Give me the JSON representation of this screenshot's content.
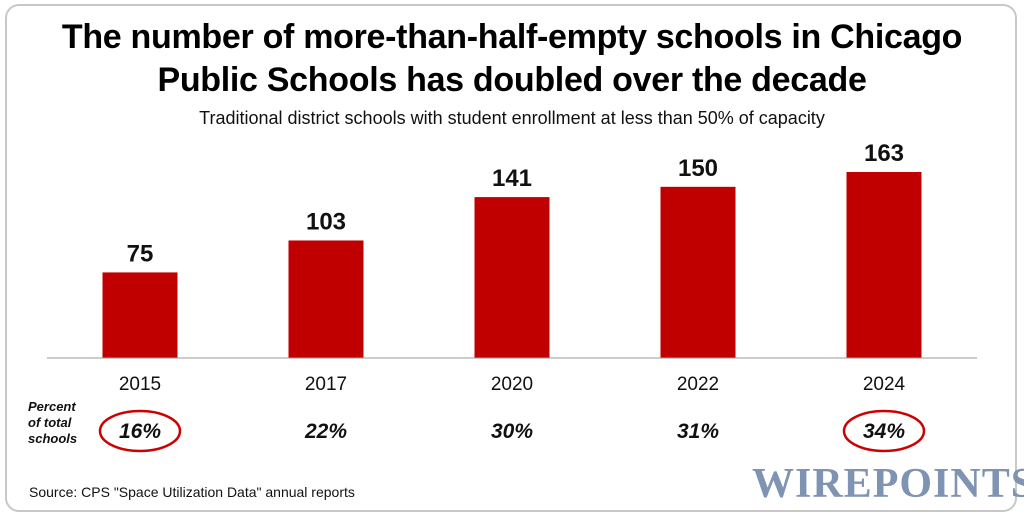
{
  "header": {
    "title_line1": "The number of more-than-half-empty schools in Chicago",
    "title_line2": "Public Schools has doubled over the decade",
    "subtitle": "Traditional district schools with student enrollment at less than 50% of capacity"
  },
  "percent_row": {
    "label": "Percent of total schools",
    "label_lines": [
      "Percent",
      "of total",
      "schools"
    ],
    "values": [
      "16%",
      "22%",
      "30%",
      "31%",
      "34%"
    ],
    "circled": [
      true,
      false,
      false,
      false,
      true
    ],
    "circle_color": "#cc0000"
  },
  "footer": {
    "source": "Source: CPS \"Space Utilization Data\" annual reports",
    "brand": "WIREPOINTS"
  },
  "colors": {
    "bar": "#c00000",
    "brand": "#7f93b3",
    "axis": "#999999"
  },
  "chart_data": {
    "type": "bar",
    "title": "The number of more-than-half-empty schools in Chicago Public Schools has doubled over the decade",
    "subtitle": "Traditional district schools with student enrollment at less than 50% of capacity",
    "categories": [
      "2015",
      "2017",
      "2020",
      "2022",
      "2024"
    ],
    "values": [
      75,
      103,
      141,
      150,
      163
    ],
    "data_labels": [
      "75",
      "103",
      "141",
      "150",
      "163"
    ],
    "xlabel": "",
    "ylabel": "",
    "ylim": [
      0,
      163
    ],
    "grid": false,
    "legend": "none"
  }
}
